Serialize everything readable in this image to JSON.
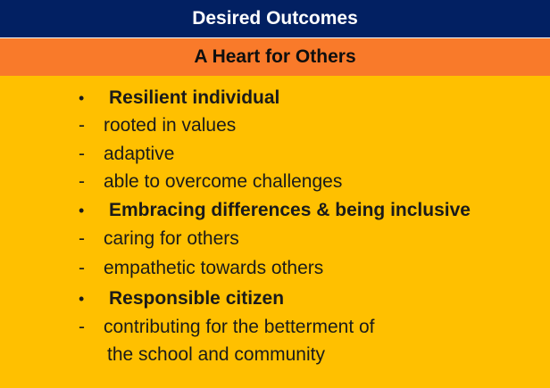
{
  "header": {
    "title": "Desired Outcomes",
    "subtitle": "A Heart for Others"
  },
  "outcomes": [
    {
      "heading": "Resilient individual",
      "points": [
        "rooted in values",
        "adaptive",
        "able to overcome challenges"
      ]
    },
    {
      "heading": "Embracing differences & being inclusive",
      "points": [
        "caring for others",
        "empathetic towards others"
      ]
    },
    {
      "heading": "Responsible citizen",
      "points": [
        "contributing for the betterment of"
      ],
      "continuation": "the school and community"
    }
  ],
  "symbols": {
    "bullet": "•",
    "dash": "-"
  }
}
